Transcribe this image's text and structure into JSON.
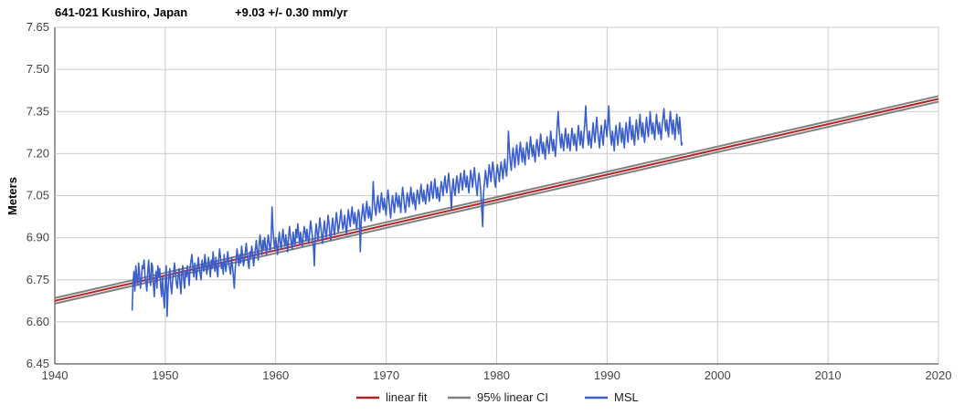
{
  "chart_data": {
    "type": "line",
    "title": "641-021 Kushiro, Japan",
    "subtitle": "+9.03 +/- 0.30 mm/yr",
    "xlabel": "",
    "ylabel": "Meters",
    "xlim": [
      1940,
      2020
    ],
    "ylim": [
      6.45,
      7.65
    ],
    "x_ticks": [
      "1940",
      "1950",
      "1960",
      "1970",
      "1980",
      "1990",
      "2000",
      "2010",
      "2020"
    ],
    "y_ticks": [
      "6.45",
      "6.60",
      "6.75",
      "6.90",
      "7.05",
      "7.20",
      "7.35",
      "7.50",
      "7.65"
    ],
    "grid": true,
    "legend": "bottom",
    "series": [
      {
        "name": "linear fit",
        "color": "#b22222",
        "x": [
          1940,
          2020
        ],
        "values": [
          6.675,
          7.395
        ]
      },
      {
        "name": "95% linear CI",
        "color": "#808080",
        "x": [
          1940,
          2020
        ],
        "values": [
          6.685,
          7.405
        ],
        "lower_values": [
          6.665,
          7.385
        ]
      },
      {
        "name": "MSL",
        "color": "#3a5fcd",
        "x_start": 1947.0,
        "x_step": 0.0833,
        "values": [
          6.64,
          6.74,
          6.78,
          6.71,
          6.8,
          6.76,
          6.73,
          6.81,
          6.77,
          6.72,
          6.75,
          6.8,
          6.79,
          6.82,
          6.76,
          6.74,
          6.71,
          6.78,
          6.82,
          6.76,
          6.73,
          6.81,
          6.8,
          6.74,
          6.69,
          6.75,
          6.78,
          6.72,
          6.8,
          6.76,
          6.79,
          6.73,
          6.69,
          6.76,
          6.7,
          6.65,
          6.74,
          6.8,
          6.62,
          6.72,
          6.76,
          6.79,
          6.73,
          6.7,
          6.75,
          6.77,
          6.81,
          6.78,
          6.74,
          6.72,
          6.76,
          6.79,
          6.74,
          6.7,
          6.77,
          6.8,
          6.75,
          6.72,
          6.78,
          6.76,
          6.8,
          6.77,
          6.73,
          6.79,
          6.82,
          6.84,
          6.79,
          6.76,
          6.81,
          6.78,
          6.75,
          6.8,
          6.83,
          6.79,
          6.77,
          6.75,
          6.82,
          6.8,
          6.78,
          6.84,
          6.81,
          6.77,
          6.79,
          6.83,
          6.8,
          6.76,
          6.82,
          6.79,
          6.85,
          6.81,
          6.78,
          6.83,
          6.79,
          6.76,
          6.82,
          6.86,
          6.83,
          6.79,
          6.81,
          6.77,
          6.84,
          6.8,
          6.78,
          6.82,
          6.85,
          6.81,
          6.79,
          6.77,
          6.83,
          6.8,
          6.76,
          6.72,
          6.79,
          6.82,
          6.86,
          6.83,
          6.8,
          6.84,
          6.81,
          6.87,
          6.84,
          6.8,
          6.82,
          6.85,
          6.88,
          6.84,
          6.81,
          6.79,
          6.85,
          6.83,
          6.87,
          6.84,
          6.8,
          6.83,
          6.86,
          6.89,
          6.85,
          6.82,
          6.88,
          6.91,
          6.87,
          6.84,
          6.89,
          6.86,
          6.9,
          6.87,
          6.84,
          6.88,
          6.91,
          6.88,
          6.85,
          6.89,
          7.01,
          6.93,
          6.89,
          6.86,
          6.9,
          6.87,
          6.84,
          6.89,
          6.92,
          6.88,
          6.86,
          6.9,
          6.93,
          6.89,
          6.87,
          6.91,
          6.88,
          6.85,
          6.9,
          6.94,
          6.91,
          6.88,
          6.86,
          6.92,
          6.89,
          6.87,
          6.93,
          6.9,
          6.95,
          6.91,
          6.88,
          6.92,
          6.89,
          6.87,
          6.91,
          6.94,
          6.92,
          6.89,
          6.93,
          6.9,
          6.88,
          6.92,
          6.96,
          6.93,
          6.9,
          6.87,
          6.8,
          6.91,
          6.95,
          6.92,
          6.89,
          6.93,
          6.97,
          6.94,
          6.91,
          6.88,
          6.93,
          6.96,
          6.92,
          6.9,
          6.94,
          6.98,
          6.95,
          6.91,
          6.89,
          6.94,
          6.97,
          6.93,
          6.91,
          6.95,
          6.99,
          6.96,
          6.92,
          6.94,
          6.97,
          7.0,
          6.96,
          6.93,
          6.95,
          6.98,
          6.94,
          6.91,
          6.96,
          7.0,
          6.97,
          6.94,
          6.98,
          7.01,
          6.97,
          6.95,
          6.99,
          6.96,
          6.93,
          6.97,
          7.0,
          6.98,
          6.85,
          6.96,
          6.99,
          7.02,
          6.98,
          6.96,
          7.0,
          7.03,
          6.99,
          6.97,
          7.01,
          6.98,
          6.96,
          7.0,
          7.1,
          7.04,
          7.0,
          6.98,
          7.02,
          7.05,
          7.01,
          6.99,
          7.03,
          7.06,
          7.02,
          7.0,
          7.04,
          7.01,
          6.98,
          7.03,
          7.07,
          7.04,
          7.0,
          6.97,
          7.02,
          7.05,
          7.02,
          6.99,
          7.03,
          7.06,
          7.03,
          7.01,
          7.05,
          7.02,
          6.99,
          7.04,
          7.08,
          7.05,
          7.01,
          6.99,
          7.03,
          7.06,
          7.04,
          7.01,
          7.05,
          7.08,
          7.04,
          7.02,
          7.06,
          7.03,
          7.0,
          7.04,
          7.07,
          7.05,
          7.02,
          7.06,
          7.09,
          7.05,
          7.03,
          7.07,
          7.04,
          7.02,
          7.06,
          7.09,
          7.06,
          7.03,
          7.07,
          7.1,
          7.06,
          7.04,
          7.08,
          7.11,
          7.07,
          7.04,
          7.08,
          7.05,
          7.03,
          7.07,
          7.1,
          7.08,
          7.05,
          7.09,
          7.12,
          7.08,
          7.06,
          7.1,
          7.13,
          7.09,
          7.06,
          7.0,
          7.08,
          7.11,
          7.07,
          7.05,
          7.09,
          7.12,
          7.09,
          7.06,
          7.1,
          7.13,
          7.1,
          7.07,
          7.11,
          7.14,
          7.1,
          7.08,
          7.12,
          7.09,
          7.06,
          7.1,
          7.14,
          7.11,
          7.08,
          7.12,
          7.15,
          7.11,
          7.08,
          7.05,
          7.1,
          7.13,
          7.1,
          7.06,
          7.0,
          6.94,
          7.06,
          7.1,
          7.14,
          7.11,
          7.08,
          7.12,
          7.16,
          7.13,
          7.1,
          7.14,
          7.17,
          7.14,
          7.1,
          7.08,
          7.13,
          7.16,
          7.13,
          7.1,
          7.14,
          7.17,
          7.14,
          7.11,
          7.15,
          7.18,
          7.14,
          7.12,
          7.17,
          7.28,
          7.22,
          7.17,
          7.14,
          7.19,
          7.22,
          7.18,
          7.15,
          7.2,
          7.23,
          7.19,
          7.16,
          7.21,
          7.24,
          7.2,
          7.17,
          7.22,
          7.19,
          7.16,
          7.21,
          7.24,
          7.21,
          7.18,
          7.22,
          7.26,
          7.22,
          7.19,
          7.23,
          7.2,
          7.17,
          7.22,
          7.25,
          7.22,
          7.19,
          7.23,
          7.27,
          7.23,
          7.2,
          7.24,
          7.21,
          7.18,
          7.23,
          7.26,
          7.23,
          7.2,
          7.24,
          7.28,
          7.24,
          7.21,
          7.25,
          7.22,
          7.19,
          7.24,
          7.3,
          7.35,
          7.29,
          7.25,
          7.22,
          7.27,
          7.24,
          7.21,
          7.26,
          7.29,
          7.25,
          7.22,
          7.27,
          7.24,
          7.21,
          7.25,
          7.29,
          7.26,
          7.23,
          7.27,
          7.24,
          7.21,
          7.26,
          7.3,
          7.26,
          7.23,
          7.28,
          7.25,
          7.22,
          7.27,
          7.31,
          7.37,
          7.3,
          7.26,
          7.23,
          7.28,
          7.25,
          7.22,
          7.27,
          7.31,
          7.27,
          7.24,
          7.29,
          7.33,
          7.28,
          7.25,
          7.22,
          7.27,
          7.3,
          7.26,
          7.23,
          7.28,
          7.32,
          7.29,
          7.26,
          7.31,
          7.37,
          7.3,
          7.26,
          7.23,
          7.28,
          7.25,
          7.21,
          7.27,
          7.3,
          7.26,
          7.23,
          7.28,
          7.31,
          7.27,
          7.24,
          7.29,
          7.26,
          7.22,
          7.28,
          7.31,
          7.27,
          7.24,
          7.29,
          7.33,
          7.28,
          7.25,
          7.3,
          7.26,
          7.23,
          7.28,
          7.32,
          7.28,
          7.25,
          7.3,
          7.34,
          7.29,
          7.26,
          7.31,
          7.27,
          7.24,
          7.29,
          7.33,
          7.29,
          7.26,
          7.3,
          7.35,
          7.3,
          7.27,
          7.31,
          7.28,
          7.25,
          7.3,
          7.34,
          7.3,
          7.27,
          7.31,
          7.28,
          7.25,
          7.3,
          7.33,
          7.36,
          7.31,
          7.28,
          7.32,
          7.29,
          7.26,
          7.31,
          7.35,
          7.31,
          7.27,
          7.32,
          7.29,
          7.25,
          7.3,
          7.34,
          7.3,
          7.27,
          7.33,
          7.29,
          7.23,
          7.24
        ]
      }
    ]
  }
}
